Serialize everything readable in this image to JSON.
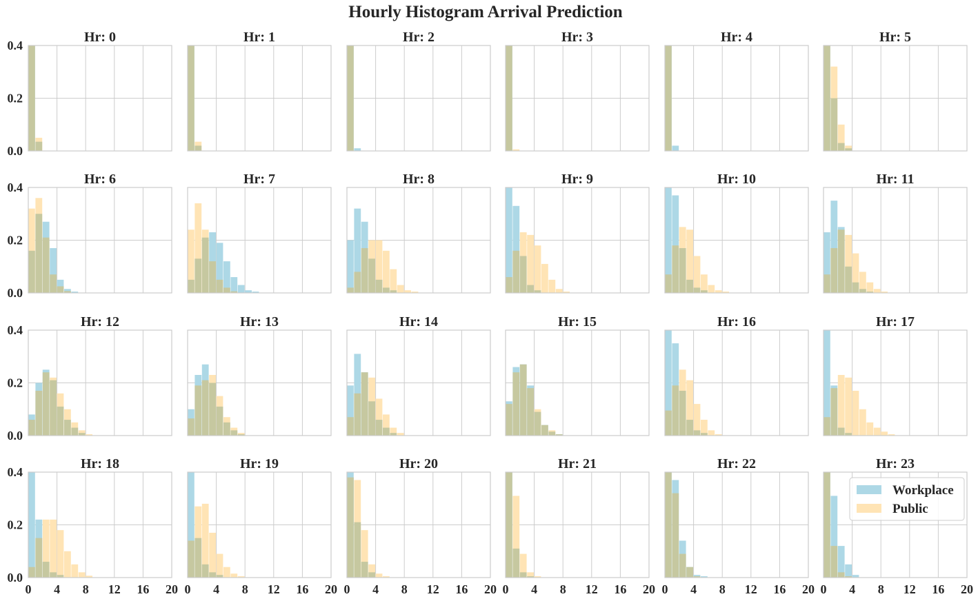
{
  "chart_data": {
    "type": "bar",
    "title": "Hourly Histogram Arrival Prediction",
    "xlim": [
      0,
      20
    ],
    "ylim": [
      0,
      0.4
    ],
    "xticks": [
      0,
      4,
      8,
      12,
      16,
      20
    ],
    "yticks": [
      0.0,
      0.2,
      0.4
    ],
    "ytick_labels": [
      "0.0",
      "0.2",
      "0.4"
    ],
    "bin_edges": [
      0,
      1,
      2,
      3,
      4,
      5,
      6,
      7,
      8,
      9,
      10,
      11,
      12,
      13,
      14,
      15,
      16,
      17,
      18,
      19,
      20
    ],
    "grid": true,
    "legend": {
      "position": "upper-right",
      "panel": "Hr: 23"
    },
    "colors": {
      "Workplace": "#add8e6",
      "Public": "#ffe4b5",
      "overlap": "#c6c8a0",
      "grid": "#cccccc",
      "frame": "#cccccc"
    },
    "series": [
      {
        "name": "Workplace"
      },
      {
        "name": "Public"
      }
    ],
    "panels": [
      {
        "title": "Hr: 0",
        "workplace": [
          0.4,
          0.035
        ],
        "public": [
          0.4,
          0.05
        ]
      },
      {
        "title": "Hr: 1",
        "workplace": [
          0.4,
          0.02
        ],
        "public": [
          0.4,
          0.035
        ]
      },
      {
        "title": "Hr: 2",
        "workplace": [
          0.4,
          0.01
        ],
        "public": [
          0.4
        ]
      },
      {
        "title": "Hr: 3",
        "workplace": [
          0.4
        ],
        "public": [
          0.4,
          0.006
        ]
      },
      {
        "title": "Hr: 4",
        "workplace": [
          0.4,
          0.02
        ],
        "public": [
          0.4
        ]
      },
      {
        "title": "Hr: 5",
        "workplace": [
          0.4,
          0.2,
          0.03,
          0.01
        ],
        "public": [
          0.4,
          0.32,
          0.1,
          0.02
        ]
      },
      {
        "title": "Hr: 6",
        "workplace": [
          0.16,
          0.3,
          0.27,
          0.17,
          0.05,
          0.015,
          0.005
        ],
        "public": [
          0.32,
          0.36,
          0.21,
          0.07,
          0.025,
          0.007
        ]
      },
      {
        "title": "Hr: 7",
        "workplace": [
          0.05,
          0.13,
          0.21,
          0.23,
          0.19,
          0.12,
          0.06,
          0.03,
          0.01,
          0.005
        ],
        "public": [
          0.24,
          0.34,
          0.24,
          0.12,
          0.05,
          0.02,
          0.006
        ]
      },
      {
        "title": "Hr: 8",
        "workplace": [
          0.2,
          0.32,
          0.27,
          0.13,
          0.05,
          0.02,
          0.01
        ],
        "public": [
          0.02,
          0.08,
          0.17,
          0.2,
          0.2,
          0.16,
          0.09,
          0.03,
          0.01,
          0.005
        ]
      },
      {
        "title": "Hr: 9",
        "workplace": [
          0.4,
          0.33,
          0.14,
          0.03,
          0.01
        ],
        "public": [
          0.06,
          0.16,
          0.23,
          0.22,
          0.18,
          0.11,
          0.05,
          0.015,
          0.005
        ]
      },
      {
        "title": "Hr: 10",
        "workplace": [
          0.4,
          0.37,
          0.17,
          0.05,
          0.02,
          0.01
        ],
        "public": [
          0.07,
          0.18,
          0.25,
          0.24,
          0.14,
          0.07,
          0.03,
          0.01,
          0.005
        ]
      },
      {
        "title": "Hr: 11",
        "workplace": [
          0.23,
          0.35,
          0.25,
          0.1,
          0.04,
          0.015,
          0.005
        ],
        "public": [
          0.07,
          0.17,
          0.24,
          0.22,
          0.15,
          0.08,
          0.04,
          0.015,
          0.005
        ]
      },
      {
        "title": "Hr: 12",
        "workplace": [
          0.08,
          0.2,
          0.25,
          0.21,
          0.11,
          0.06,
          0.03,
          0.01
        ],
        "public": [
          0.06,
          0.17,
          0.24,
          0.22,
          0.16,
          0.1,
          0.05,
          0.02,
          0.005
        ]
      },
      {
        "title": "Hr: 13",
        "workplace": [
          0.1,
          0.23,
          0.27,
          0.2,
          0.11,
          0.05,
          0.02,
          0.005
        ],
        "public": [
          0.065,
          0.19,
          0.21,
          0.23,
          0.15,
          0.07,
          0.03,
          0.01
        ]
      },
      {
        "title": "Hr: 14",
        "workplace": [
          0.19,
          0.31,
          0.24,
          0.13,
          0.06,
          0.03,
          0.01
        ],
        "public": [
          0.07,
          0.16,
          0.24,
          0.22,
          0.14,
          0.08,
          0.03,
          0.01
        ]
      },
      {
        "title": "Hr: 15",
        "workplace": [
          0.13,
          0.26,
          0.27,
          0.19,
          0.09,
          0.04,
          0.015,
          0.005
        ],
        "public": [
          0.12,
          0.24,
          0.27,
          0.18,
          0.1,
          0.04,
          0.02,
          0.005
        ]
      },
      {
        "title": "Hr: 16",
        "workplace": [
          0.4,
          0.35,
          0.17,
          0.06,
          0.02,
          0.01
        ],
        "public": [
          0.095,
          0.19,
          0.25,
          0.21,
          0.12,
          0.06,
          0.02,
          0.005
        ]
      },
      {
        "title": "Hr: 17",
        "workplace": [
          0.4,
          0.19,
          0.03,
          0.01
        ],
        "public": [
          0.07,
          0.18,
          0.23,
          0.22,
          0.17,
          0.1,
          0.05,
          0.03,
          0.015,
          0.005
        ]
      },
      {
        "title": "Hr: 18",
        "workplace": [
          0.4,
          0.22,
          0.06,
          0.02,
          0.01
        ],
        "public": [
          0.04,
          0.15,
          0.22,
          0.22,
          0.18,
          0.1,
          0.05,
          0.02,
          0.007
        ]
      },
      {
        "title": "Hr: 19",
        "workplace": [
          0.4,
          0.15,
          0.05,
          0.02,
          0.01
        ],
        "public": [
          0.14,
          0.27,
          0.28,
          0.17,
          0.09,
          0.04,
          0.015,
          0.005
        ]
      },
      {
        "title": "Hr: 20",
        "workplace": [
          0.4,
          0.21,
          0.06,
          0.02
        ],
        "public": [
          0.38,
          0.37,
          0.18,
          0.05,
          0.015,
          0.005
        ]
      },
      {
        "title": "Hr: 21",
        "workplace": [
          0.4,
          0.11,
          0.02,
          0.005
        ],
        "public": [
          0.4,
          0.31,
          0.09,
          0.02,
          0.005
        ]
      },
      {
        "title": "Hr: 22",
        "workplace": [
          0.4,
          0.37,
          0.14,
          0.04,
          0.01,
          0.005
        ],
        "public": [
          0.4,
          0.32,
          0.09,
          0.04,
          0.005
        ]
      },
      {
        "title": "Hr: 23",
        "workplace": [
          0.4,
          0.31,
          0.12,
          0.05,
          0.01
        ],
        "public": [
          0.4,
          0.12,
          0.02,
          0.005
        ]
      }
    ]
  }
}
